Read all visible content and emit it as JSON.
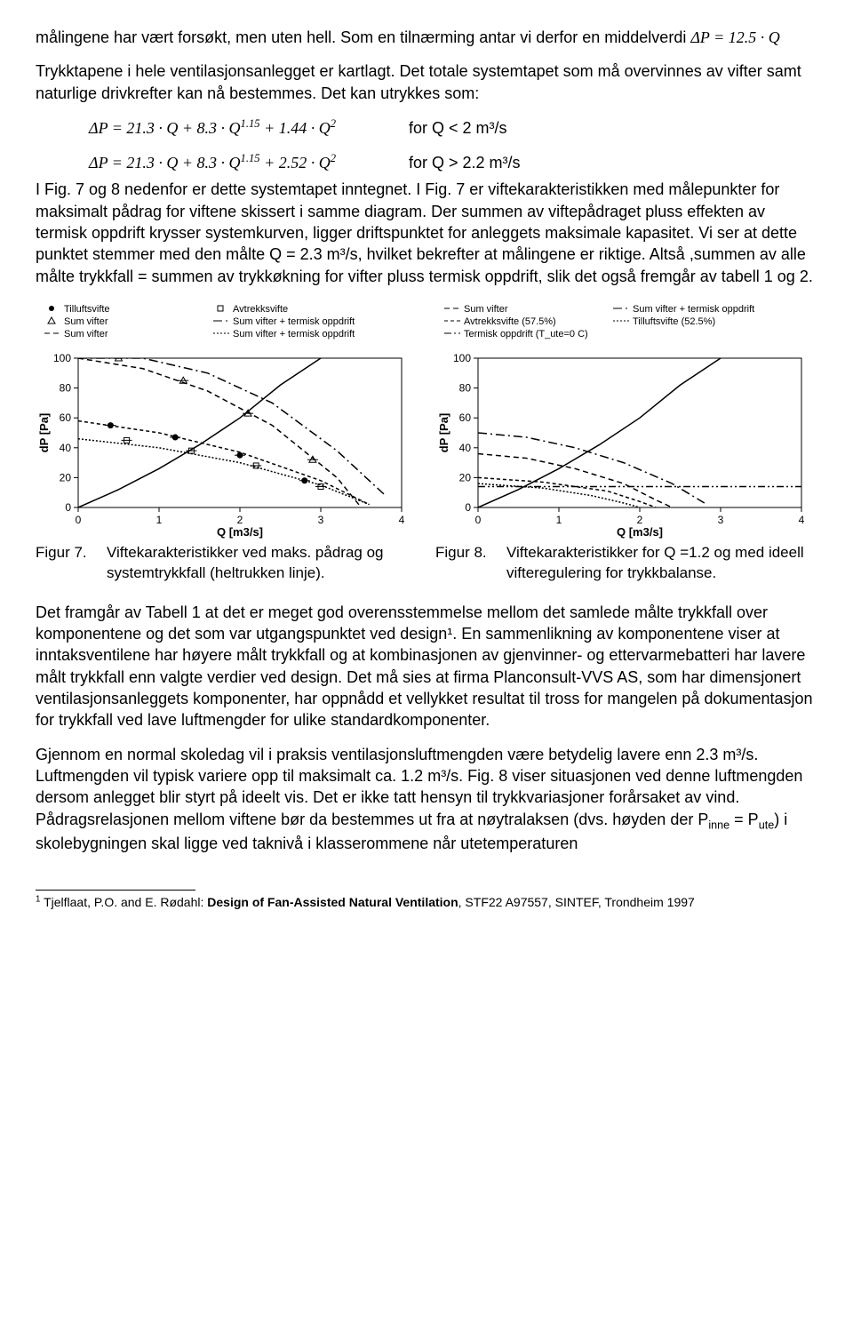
{
  "para1_a": "målingene har vært forsøkt, men uten hell. Som en tilnærming antar vi derfor en middelverdi ",
  "eq1": "ΔP = 12.5 · Q",
  "para2": "Trykktapene i hele ventilasjonsanlegget er kartlagt. Det totale systemtapet som må overvinnes av vifter samt naturlige drivkrefter kan nå bestemmes. Det kan utrykkes som:",
  "eq2a_expr": "ΔP = 21.3 · Q + 8.3 · Q",
  "eq2a_exp": "1.15",
  "eq2a_tail": " + 1.44 · Q",
  "eq2a_sq": "2",
  "eq2a_cond": "for Q < 2 m³/s",
  "eq2b_expr": "ΔP = 21.3 · Q + 8.3 · Q",
  "eq2b_exp": "1.15",
  "eq2b_tail": " + 2.52 · Q",
  "eq2b_sq": "2",
  "eq2b_cond": "for Q > 2.2 m³/s",
  "para3": "I Fig. 7 og 8 nedenfor er dette systemtapet inntegnet. I Fig. 7 er viftekarakteristikken med målepunkter for maksimalt pådrag for viftene skissert i samme diagram. Der summen av viftepådraget pluss effekten av termisk oppdrift krysser systemkurven, ligger driftspunktet for anleggets maksimale kapasitet. Vi ser at dette punktet stemmer med den målte Q = 2.3 m³/s, hvilket bekrefter at målingene er riktige. Altså ,summen av alle målte trykkfall =  summen av trykkøkning for vifter pluss termisk oppdrift, slik det også fremgår av tabell 1 og 2.",
  "fig7_label": "Figur 7.",
  "fig7_caption": "Viftekarakteristikker ved maks. pådrag og systemtrykkfall (heltrukken linje).",
  "fig8_label": "Figur 8.",
  "fig8_caption": "Viftekarakteristikker for Q =1.2 og med ideell vifteregulering for trykkbalanse.",
  "para4": "Det framgår  av Tabell 1 at det er meget god overensstemmelse mellom det samlede målte trykkfall over komponentene og det som var utgangspunktet ved design¹. En sammenlikning av komponentene viser at inntaksventilene har høyere målt trykkfall og at kombinasjonen av gjenvinner- og ettervarmebatteri har lavere målt trykkfall enn valgte verdier ved design. Det må sies at firma Planconsult-VVS AS, som har dimensjonert ventilasjonsanleggets komponenter, har oppnådd et vellykket resultat til tross for mangelen på dokumentasjon for trykkfall ved lave luftmengder for ulike standardkomponenter.",
  "para5": "Gjennom en normal skoledag vil i praksis ventilasjonsluftmengden være betydelig lavere enn 2.3 m³/s. Luftmengden vil typisk variere opp til maksimalt ca.  1.2 m³/s. Fig. 8 viser situasjonen ved denne luftmengden dersom anlegget blir styrt på ideelt vis. Det er ikke tatt hensyn til trykkvariasjoner forårsaket av vind. Pådragsrelasjonen mellom viftene bør da bestemmes ut fra at nøytralaksen (dvs. høyden der P",
  "para5_sub1": "inne",
  "para5_mid": " = P",
  "para5_sub2": "ute",
  "para5_end": ") i skolebygningen skal ligge ved taknivå i klasserommene når utetemperaturen",
  "footnote_num": "1",
  "footnote_a": " Tjelflaat, P.O. and E. Rødahl: ",
  "footnote_b": "Design of Fan-Assisted Natural Ventilation",
  "footnote_c": ", STF22 A97557, SINTEF, Trondheim 1997",
  "chart7": {
    "legends": [
      "Tilluftsvifte",
      "Avtrekksvifte",
      "Sum vifter",
      "Sum vifter + termisk oppdrift",
      "Sum vifter",
      "Sum vifter + termisk oppdrift"
    ],
    "ylabel": "dP [Pa]",
    "xlabel": "Q [m3/s]",
    "xticks": [
      0,
      1,
      2,
      3,
      4
    ],
    "yticks": [
      0,
      20,
      40,
      60,
      80,
      100
    ],
    "xlim": [
      0,
      4
    ],
    "ylim": [
      0,
      100
    ],
    "bg": "#ffffff",
    "axis_color": "#000000",
    "series": {
      "tilluft_markers": {
        "color": "#000",
        "x": [
          0.4,
          1.2,
          2.0,
          2.8
        ],
        "y": [
          55,
          47,
          35,
          18
        ]
      },
      "avtrekk_markers": {
        "color": "#000",
        "x": [
          0.6,
          1.4,
          2.2,
          3.0
        ],
        "y": [
          45,
          38,
          28,
          14
        ]
      },
      "sum_markers": {
        "color": "#000",
        "x": [
          0.5,
          1.3,
          2.1,
          2.9
        ],
        "y": [
          100,
          85,
          63,
          32
        ]
      },
      "system_solid": {
        "color": "#000",
        "pts": [
          [
            0,
            0
          ],
          [
            0.5,
            12
          ],
          [
            1.0,
            26
          ],
          [
            1.5,
            42
          ],
          [
            2.0,
            60
          ],
          [
            2.5,
            82
          ],
          [
            3.0,
            100
          ]
        ]
      },
      "sum_dash": {
        "color": "#000",
        "dash": "6,4",
        "pts": [
          [
            0,
            100
          ],
          [
            0.8,
            93
          ],
          [
            1.6,
            78
          ],
          [
            2.4,
            55
          ],
          [
            3.2,
            20
          ],
          [
            3.5,
            0
          ]
        ]
      },
      "sum_therm_dashdot": {
        "color": "#000",
        "dash": "10,4,2,4",
        "pts": [
          [
            0,
            100
          ],
          [
            0.8,
            100
          ],
          [
            1.6,
            90
          ],
          [
            2.4,
            70
          ],
          [
            3.2,
            38
          ],
          [
            3.8,
            8
          ]
        ]
      },
      "sum_dash2": {
        "color": "#000",
        "dash": "4,3",
        "pts": [
          [
            0,
            58
          ],
          [
            1.0,
            50
          ],
          [
            2.0,
            37
          ],
          [
            3.0,
            18
          ],
          [
            3.6,
            2
          ]
        ]
      },
      "sum_therm2": {
        "color": "#000",
        "dash": "2,2",
        "pts": [
          [
            0,
            46
          ],
          [
            1.0,
            40
          ],
          [
            2.0,
            30
          ],
          [
            3.0,
            15
          ],
          [
            3.6,
            2
          ]
        ]
      }
    }
  },
  "chart8": {
    "legends": [
      "Sum vifter",
      "Sum vifter + termisk oppdrift",
      "Avtrekksvifte (57.5%)",
      "Tilluftsvifte (52.5%)",
      "Termisk oppdrift (T_ute=0 C)"
    ],
    "ylabel": "dP [Pa]",
    "xlabel": "Q [m3/s]",
    "xticks": [
      0,
      1,
      2,
      3,
      4
    ],
    "yticks": [
      0,
      20,
      40,
      60,
      80,
      100
    ],
    "xlim": [
      0,
      4
    ],
    "ylim": [
      0,
      100
    ],
    "bg": "#ffffff",
    "axis_color": "#000000",
    "series": {
      "system_solid": {
        "color": "#000",
        "pts": [
          [
            0,
            0
          ],
          [
            0.5,
            12
          ],
          [
            1.0,
            26
          ],
          [
            1.5,
            42
          ],
          [
            2.0,
            60
          ],
          [
            2.5,
            82
          ],
          [
            3.0,
            100
          ]
        ]
      },
      "sum_dash": {
        "color": "#000",
        "dash": "6,4",
        "pts": [
          [
            0,
            36
          ],
          [
            0.6,
            33
          ],
          [
            1.2,
            26
          ],
          [
            1.8,
            16
          ],
          [
            2.2,
            5
          ],
          [
            2.4,
            0
          ]
        ]
      },
      "sum_therm": {
        "color": "#000",
        "dash": "10,4,2,4",
        "pts": [
          [
            0,
            50
          ],
          [
            0.6,
            47
          ],
          [
            1.2,
            40
          ],
          [
            1.8,
            30
          ],
          [
            2.4,
            16
          ],
          [
            2.8,
            3
          ]
        ]
      },
      "avtrekk": {
        "color": "#000",
        "dash": "4,3",
        "pts": [
          [
            0,
            20
          ],
          [
            0.8,
            17
          ],
          [
            1.6,
            11
          ],
          [
            2.0,
            4
          ],
          [
            2.2,
            0
          ]
        ]
      },
      "tilluft": {
        "color": "#000",
        "dash": "2,2",
        "pts": [
          [
            0,
            16
          ],
          [
            0.8,
            13
          ],
          [
            1.4,
            8
          ],
          [
            1.8,
            3
          ],
          [
            2.0,
            0
          ]
        ]
      },
      "termisk": {
        "color": "#000",
        "dash": "8,3,2,3,2,3",
        "pts": [
          [
            0,
            14
          ],
          [
            4,
            14
          ]
        ]
      }
    }
  }
}
